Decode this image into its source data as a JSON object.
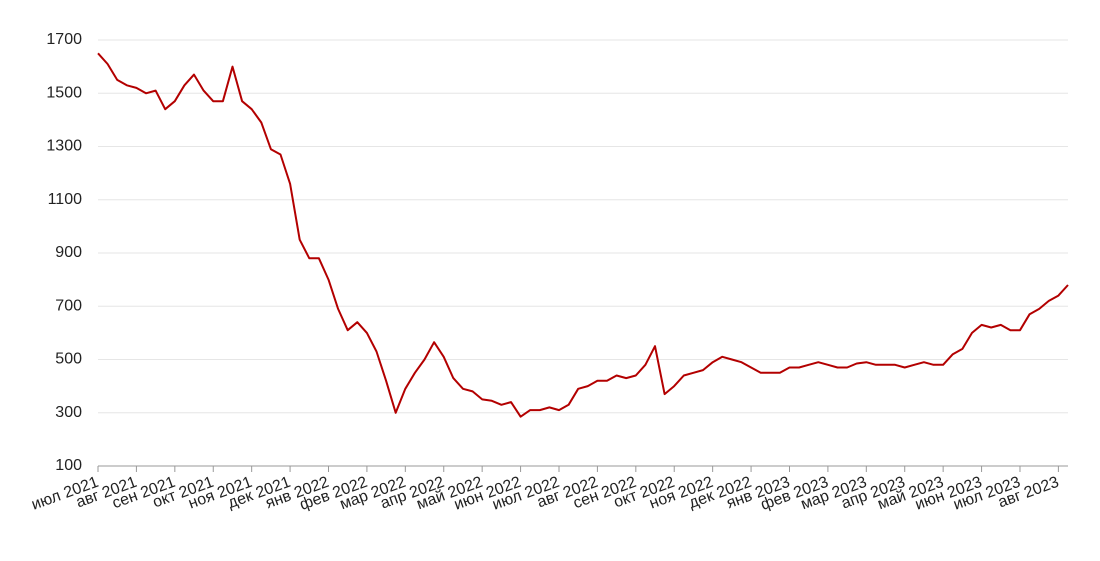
{
  "chart_data": {
    "type": "line",
    "categories": [
      "июл 2021",
      null,
      null,
      null,
      "авг 2021",
      null,
      null,
      null,
      "сен 2021",
      null,
      null,
      null,
      "окт 2021",
      null,
      null,
      null,
      "ноя 2021",
      null,
      null,
      null,
      "дек 2021",
      null,
      null,
      null,
      "янв 2022",
      null,
      null,
      null,
      "фев 2022",
      null,
      null,
      null,
      "мар 2022",
      null,
      null,
      null,
      "апр 2022",
      null,
      null,
      null,
      "май 2022",
      null,
      null,
      null,
      "июн 2022",
      null,
      null,
      null,
      "июл 2022",
      null,
      null,
      null,
      "авг 2022",
      null,
      null,
      null,
      "сен 2022",
      null,
      null,
      null,
      "окт 2022",
      null,
      null,
      null,
      "ноя 2022",
      null,
      null,
      null,
      "дек 2022",
      null,
      null,
      null,
      "янв 2023",
      null,
      null,
      null,
      "фев 2023",
      null,
      null,
      null,
      "мар 2023",
      null,
      null,
      null,
      "апр 2023",
      null,
      null,
      null,
      "май 2023",
      null,
      null,
      null,
      "июн 2023",
      null,
      null,
      null,
      "июл 2023",
      null,
      null,
      null,
      "авг 2023",
      null
    ],
    "series": [
      {
        "color": "#b30000",
        "values": [
          1650,
          1610,
          1550,
          1530,
          1520,
          1500,
          1510,
          1440,
          1470,
          1530,
          1570,
          1510,
          1470,
          1470,
          1600,
          1470,
          1440,
          1390,
          1290,
          1270,
          1160,
          950,
          880,
          880,
          800,
          690,
          610,
          640,
          600,
          530,
          420,
          300,
          390,
          450,
          500,
          565,
          510,
          430,
          390,
          380,
          350,
          345,
          330,
          340,
          285,
          310,
          310,
          320,
          310,
          330,
          390,
          400,
          420,
          420,
          440,
          430,
          440,
          480,
          550,
          370,
          400,
          440,
          450,
          460,
          490,
          510,
          500,
          490,
          470,
          450,
          450,
          450,
          470,
          470,
          480,
          490,
          480,
          470,
          470,
          485,
          490,
          480,
          480,
          480,
          470,
          480,
          490,
          480,
          480,
          520,
          540,
          600,
          630,
          620,
          630,
          610,
          610,
          670,
          690,
          720,
          740,
          780
        ]
      }
    ],
    "ylim": [
      100,
      1700
    ],
    "yticks": [
      100,
      300,
      500,
      700,
      900,
      1100,
      1300,
      1500,
      1700
    ],
    "grid": true
  }
}
